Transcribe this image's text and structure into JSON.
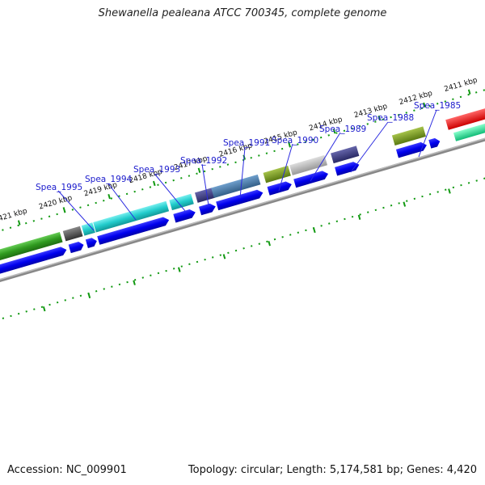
{
  "title": "Shewanella pealeana ATCC 700345, complete genome",
  "footer": {
    "accession": "Accession: NC_009901",
    "summary": "Topology: circular; Length: 5,174,581 bp; Genes: 4,420"
  },
  "kbp_labels": [
    "2421 kbp",
    "2420 kbp",
    "2419 kbp",
    "2418 kbp",
    "2417 kbp",
    "2416 kbp",
    "2415 kbp",
    "2414 kbp",
    "2413 kbp",
    "2412 kbp",
    "2411 kbp"
  ],
  "gene_labels": [
    "Spea_1995",
    "Spea_1994",
    "Spea_1993",
    "Spea_1992",
    "Spea_1991",
    "Spea_1990",
    "Spea_1989",
    "Spea_1988",
    "Spea_1985"
  ],
  "colors": {
    "cds_blue": "#0000ee",
    "green": "#33aa22",
    "dark_gray": "#555555",
    "cyan": "#22cccc",
    "navy": "#3a3a88",
    "steel": "#4477aa",
    "olive": "#779922",
    "light_gray": "#aaaaaa",
    "red": "#ee0000",
    "mint": "#22dd99",
    "tick_green": "#119911",
    "backbone": "#777777"
  }
}
